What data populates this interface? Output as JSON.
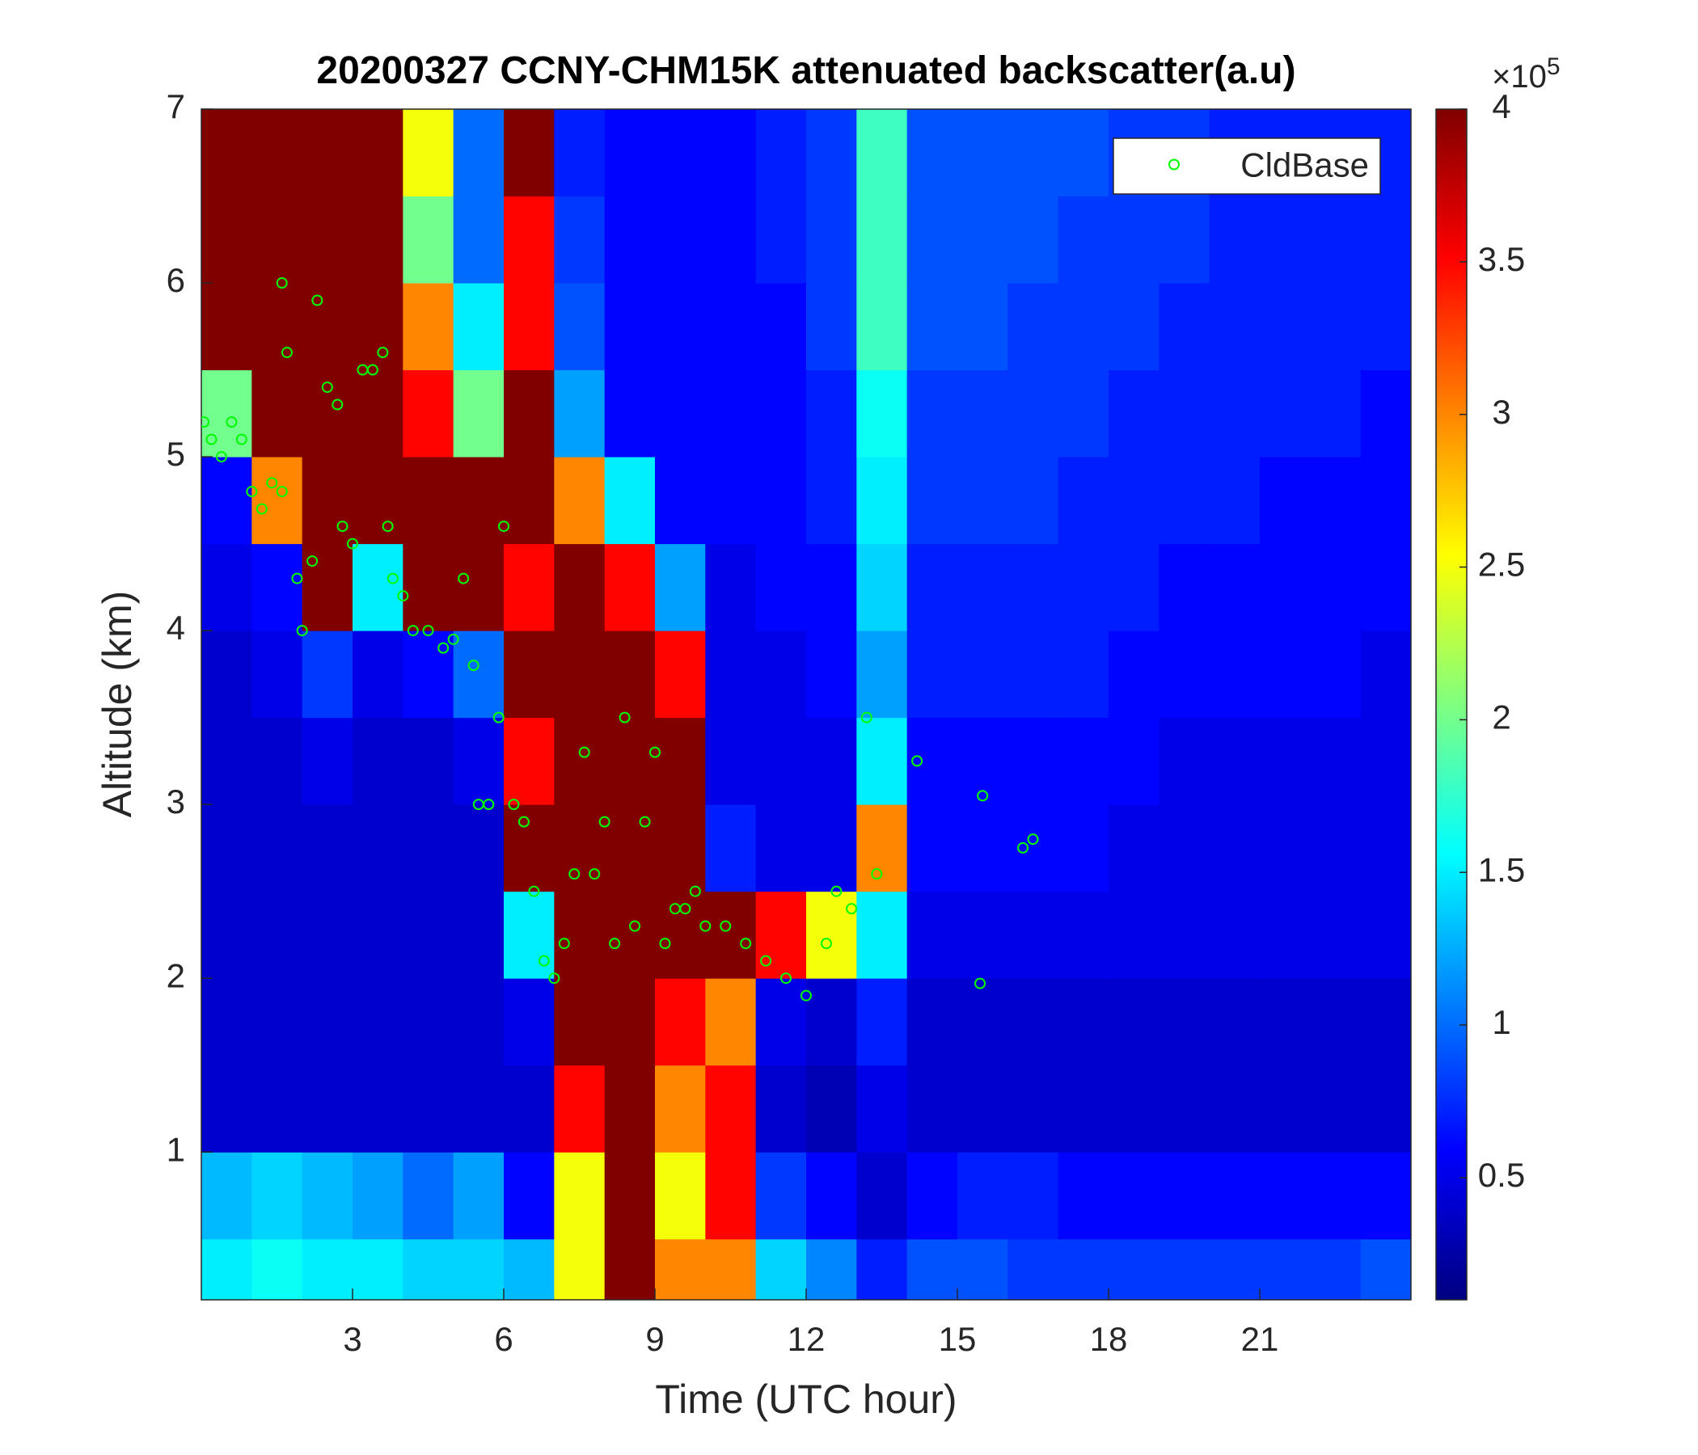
{
  "chart_data": {
    "type": "heatmap",
    "title": "20200327 CCNY-CHM15K attenuated backscatter(a.u)",
    "xlabel": "Time (UTC hour)",
    "ylabel": "Altitude (km)",
    "xlim": [
      0,
      24
    ],
    "ylim": [
      0.15,
      7
    ],
    "xticks": [
      3,
      6,
      9,
      12,
      15,
      18,
      21
    ],
    "yticks": [
      1,
      2,
      3,
      4,
      5,
      6,
      7
    ],
    "colormap": "jet",
    "clim": [
      0.1,
      4
    ],
    "cticks": [
      0.5,
      1,
      1.5,
      2,
      2.5,
      3,
      3.5,
      4
    ],
    "colorbar_multiplier": {
      "base": "×10",
      "exponent": "5"
    },
    "x": [
      0.5,
      1.5,
      2.5,
      3.5,
      4.5,
      5.5,
      6.5,
      7.5,
      8.5,
      9.5,
      10.5,
      11.5,
      12.5,
      13.5,
      14.5,
      15.5,
      16.5,
      17.5,
      18.5,
      19.5,
      20.5,
      21.5,
      22.5,
      23.5
    ],
    "y": [
      0.25,
      0.75,
      1.25,
      1.75,
      2.25,
      2.75,
      3.25,
      3.75,
      4.25,
      4.75,
      5.25,
      5.75,
      6.25,
      6.75
    ],
    "z": [
      [
        1.5,
        1.6,
        1.5,
        1.5,
        1.4,
        1.4,
        1.3,
        2.5,
        4,
        3,
        3,
        1.4,
        1.1,
        0.7,
        0.9,
        0.9,
        0.8,
        0.8,
        0.8,
        0.8,
        0.8,
        0.8,
        0.8,
        0.9
      ],
      [
        1.3,
        1.4,
        1.3,
        1.2,
        1,
        1.2,
        0.6,
        2.5,
        4,
        2.5,
        3.5,
        0.8,
        0.6,
        0.4,
        0.6,
        0.7,
        0.7,
        0.6,
        0.6,
        0.6,
        0.6,
        0.6,
        0.6,
        0.6
      ],
      [
        0.4,
        0.4,
        0.4,
        0.4,
        0.4,
        0.4,
        0.4,
        3.5,
        4,
        3,
        3.5,
        0.4,
        0.3,
        0.5,
        0.4,
        0.4,
        0.4,
        0.4,
        0.4,
        0.4,
        0.4,
        0.4,
        0.4,
        0.4
      ],
      [
        0.4,
        0.4,
        0.4,
        0.4,
        0.4,
        0.4,
        0.5,
        4,
        4,
        3.5,
        3,
        0.5,
        0.4,
        0.7,
        0.4,
        0.4,
        0.4,
        0.4,
        0.4,
        0.4,
        0.4,
        0.4,
        0.4,
        0.4
      ],
      [
        0.4,
        0.4,
        0.4,
        0.4,
        0.4,
        0.4,
        1.5,
        4,
        4,
        4,
        4,
        3.5,
        2.5,
        1.5,
        0.5,
        0.5,
        0.5,
        0.5,
        0.5,
        0.5,
        0.5,
        0.5,
        0.5,
        0.5
      ],
      [
        0.4,
        0.4,
        0.4,
        0.4,
        0.4,
        0.4,
        4,
        4,
        4,
        4,
        0.7,
        0.5,
        0.5,
        3,
        0.6,
        0.6,
        0.6,
        0.6,
        0.5,
        0.5,
        0.5,
        0.5,
        0.5,
        0.5
      ],
      [
        0.4,
        0.4,
        0.5,
        0.4,
        0.4,
        0.5,
        3.5,
        4,
        4,
        4,
        0.5,
        0.5,
        0.5,
        1.5,
        0.6,
        0.6,
        0.6,
        0.6,
        0.6,
        0.5,
        0.5,
        0.5,
        0.5,
        0.5
      ],
      [
        0.4,
        0.5,
        0.8,
        0.5,
        0.6,
        1,
        4,
        4,
        4,
        3.5,
        0.5,
        0.5,
        0.6,
        1.2,
        0.7,
        0.7,
        0.7,
        0.7,
        0.6,
        0.6,
        0.6,
        0.6,
        0.6,
        0.5
      ],
      [
        0.5,
        0.6,
        4,
        1.5,
        4,
        4,
        3.5,
        4,
        3.5,
        1.2,
        0.5,
        0.6,
        0.6,
        1.4,
        0.7,
        0.7,
        0.7,
        0.7,
        0.7,
        0.6,
        0.6,
        0.6,
        0.6,
        0.6
      ],
      [
        0.6,
        3,
        4,
        4,
        4,
        4,
        4,
        3,
        1.5,
        0.6,
        0.6,
        0.6,
        0.7,
        1.5,
        0.8,
        0.8,
        0.8,
        0.7,
        0.7,
        0.7,
        0.7,
        0.6,
        0.6,
        0.6
      ],
      [
        2,
        4,
        4,
        4,
        3.5,
        2,
        4,
        1.2,
        0.6,
        0.6,
        0.6,
        0.6,
        0.7,
        1.6,
        0.8,
        0.8,
        0.8,
        0.8,
        0.7,
        0.7,
        0.7,
        0.7,
        0.7,
        0.6
      ],
      [
        4,
        4,
        4,
        4,
        3,
        1.5,
        3.5,
        0.9,
        0.6,
        0.6,
        0.6,
        0.6,
        0.8,
        1.8,
        0.9,
        0.9,
        0.8,
        0.8,
        0.8,
        0.7,
        0.7,
        0.7,
        0.7,
        0.7
      ],
      [
        4,
        4,
        4,
        4,
        2,
        1,
        3.5,
        0.8,
        0.6,
        0.6,
        0.6,
        0.7,
        0.8,
        1.8,
        0.9,
        0.9,
        0.9,
        0.8,
        0.8,
        0.8,
        0.7,
        0.7,
        0.7,
        0.7
      ],
      [
        4,
        4,
        4,
        4,
        2.5,
        1,
        4,
        0.7,
        0.6,
        0.6,
        0.6,
        0.7,
        0.8,
        1.8,
        0.9,
        0.9,
        0.9,
        0.9,
        0.8,
        0.8,
        0.7,
        0.7,
        0.7,
        0.7
      ]
    ],
    "overlay": {
      "type": "scatter",
      "name": "CldBase",
      "color": "#00ff00",
      "legend": "top-right",
      "x": [
        0.05,
        0.2,
        0.4,
        0.6,
        0.8,
        1,
        1.2,
        1.4,
        1.6,
        1.6,
        1.7,
        1.9,
        2.0,
        2.2,
        2.3,
        2.5,
        2.7,
        2.8,
        3,
        3.2,
        3.4,
        3.6,
        3.7,
        3.8,
        4,
        4.2,
        4.5,
        4.8,
        5,
        5.2,
        5.4,
        5.5,
        5.7,
        5.9,
        6.0,
        6.2,
        6.4,
        6.6,
        6.8,
        7.0,
        7.2,
        7.4,
        7.6,
        7.8,
        8.0,
        8.2,
        8.4,
        8.6,
        8.8,
        9.0,
        9.2,
        9.4,
        9.6,
        9.8,
        10,
        10.4,
        10.8,
        11.2,
        11.6,
        12,
        12.4,
        12.6,
        12.9,
        13.2,
        13.4,
        14.2,
        15.5,
        15.45,
        16.3,
        16.5
      ],
      "y": [
        5.2,
        5.1,
        5.0,
        5.2,
        5.1,
        4.8,
        4.7,
        4.85,
        4.8,
        6.0,
        5.6,
        4.3,
        4.0,
        4.4,
        5.9,
        5.4,
        5.3,
        4.6,
        4.5,
        5.5,
        5.5,
        5.6,
        4.6,
        4.3,
        4.2,
        4.0,
        4.0,
        3.9,
        3.95,
        4.3,
        3.8,
        3.0,
        3.0,
        3.5,
        4.6,
        3.0,
        2.9,
        2.5,
        2.1,
        2.0,
        2.2,
        2.6,
        3.3,
        2.6,
        2.9,
        2.2,
        3.5,
        2.3,
        2.9,
        3.3,
        2.2,
        2.4,
        2.4,
        2.5,
        2.3,
        2.3,
        2.2,
        2.1,
        2.0,
        1.9,
        2.2,
        2.5,
        2.4,
        3.5,
        2.6,
        3.25,
        3.05,
        1.97,
        2.75,
        2.8
      ]
    }
  }
}
